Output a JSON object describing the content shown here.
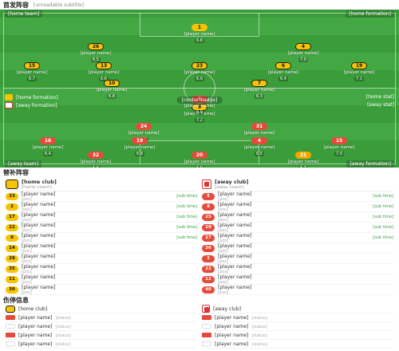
{
  "lineup": {
    "title": "首发阵容",
    "subtitle": "[unreadable subtitle]",
    "home_team_name": "[home team]",
    "home_formation_label": "[home formation]",
    "away_team_name": "[away team]",
    "away_formation_label": "[away formation]",
    "center_label": "[center badge]",
    "home_form": {
      "formation": "[home formation]",
      "stat": "[home stat]"
    },
    "away_form": {
      "formation": "[away formation]",
      "stat": "[away stat]"
    },
    "home_players": [
      {
        "num": "1",
        "name": "[player name]",
        "rating": "6.8"
      },
      {
        "num": "26",
        "name": "[player name]",
        "rating": "6.5"
      },
      {
        "num": "4",
        "name": "[player name]",
        "rating": "7.0"
      },
      {
        "num": "15",
        "name": "[player name]",
        "rating": "6.7"
      },
      {
        "num": "13",
        "name": "[player name]",
        "rating": "6.6"
      },
      {
        "num": "23",
        "name": "[player name]",
        "rating": "6.9"
      },
      {
        "num": "6",
        "name": "[player name]",
        "rating": "6.4"
      },
      {
        "num": "19",
        "name": "[player name]",
        "rating": "7.1"
      },
      {
        "num": "10",
        "name": "[player name]",
        "rating": "6.8"
      },
      {
        "num": "7",
        "name": "[player name]",
        "rating": "6.3"
      },
      {
        "num": "9",
        "name": "[player name]",
        "rating": "7.2"
      }
    ],
    "away_players": [
      {
        "num": "21",
        "name": "[player name]",
        "rating": "6.7"
      },
      {
        "num": "20",
        "name": "[player name]",
        "rating": "6.9"
      },
      {
        "num": "32",
        "name": "[player name]",
        "rating": "6.6"
      },
      {
        "num": "15",
        "name": "[player name]",
        "rating": "7.0"
      },
      {
        "num": "4",
        "name": "[player name]",
        "rating": "6.5"
      },
      {
        "num": "19",
        "name": "[player name]",
        "rating": "6.8"
      },
      {
        "num": "16",
        "name": "[player name]",
        "rating": "6.4"
      },
      {
        "num": "31",
        "name": "[player name]",
        "rating": "7.1"
      },
      {
        "num": "24",
        "name": "[player name]",
        "rating": "6.6"
      },
      {
        "num": "1",
        "name": "[player name]",
        "rating": "6.9"
      }
    ]
  },
  "subs": {
    "title": "替补阵容",
    "home": {
      "club": "[home club]",
      "coach": "[home coach]",
      "players": [
        {
          "num": "33",
          "name": "[player name]",
          "pos": "[pos]",
          "in": "[sub time]"
        },
        {
          "num": "2",
          "name": "[player name]",
          "pos": "[pos]",
          "in": "[sub time]"
        },
        {
          "num": "17",
          "name": "[player name]",
          "pos": "[pos]",
          "in": "[sub time]"
        },
        {
          "num": "22",
          "name": "[player name]",
          "pos": "[pos]",
          "in": "[sub time]"
        },
        {
          "num": "8",
          "name": "[player name]",
          "pos": "[pos]",
          "in": "[sub time]"
        },
        {
          "num": "14",
          "name": "[player name]",
          "pos": "[pos]",
          "in": ""
        },
        {
          "num": "28",
          "name": "[player name]",
          "pos": "[pos]",
          "in": ""
        },
        {
          "num": "35",
          "name": "[player name]",
          "pos": "[pos]",
          "in": ""
        },
        {
          "num": "11",
          "name": "[player name]",
          "pos": "[pos]",
          "in": ""
        },
        {
          "num": "30",
          "name": "[player name]",
          "pos": "[pos]",
          "in": ""
        }
      ]
    },
    "away": {
      "club": "[away club]",
      "coach": "[away coach]",
      "players": [
        {
          "num": "5",
          "name": "[player name]",
          "pos": "[pos]",
          "in": "[sub time]"
        },
        {
          "num": "8",
          "name": "[player name]",
          "pos": "[pos]",
          "in": "[sub time]"
        },
        {
          "num": "25",
          "name": "[player name]",
          "pos": "[pos]",
          "in": "[sub time]"
        },
        {
          "num": "29",
          "name": "[player name]",
          "pos": "[pos]",
          "in": "[sub time]"
        },
        {
          "num": "27",
          "name": "[player name]",
          "pos": "[pos]",
          "in": "[sub time]"
        },
        {
          "num": "36",
          "name": "[player name]",
          "pos": "[pos]",
          "in": ""
        },
        {
          "num": "3",
          "name": "[player name]",
          "pos": "[pos]",
          "in": ""
        },
        {
          "num": "22",
          "name": "[player name]",
          "pos": "[pos]",
          "in": ""
        },
        {
          "num": "12",
          "name": "[player name]",
          "pos": "[pos]",
          "in": ""
        },
        {
          "num": "40",
          "name": "[player name]",
          "pos": "[pos]",
          "in": ""
        }
      ]
    }
  },
  "injuries": {
    "title": "伤停信息",
    "home": {
      "club": "[home club]",
      "players": [
        {
          "name": "[player name]",
          "status": "[status]"
        },
        {
          "name": "[player name]",
          "status": "[status]"
        },
        {
          "name": "[player name]",
          "status": "[status]"
        },
        {
          "name": "[player name]",
          "status": "[status]"
        }
      ]
    },
    "away": {
      "club": "[away club]",
      "players": [
        {
          "name": "[player name]",
          "status": "[status]"
        },
        {
          "name": "[player name]",
          "status": "[status]"
        },
        {
          "name": "[player name]",
          "status": "[status]"
        },
        {
          "name": "[player name]",
          "status": "[status]"
        }
      ]
    }
  },
  "colors": {
    "pitch": "#3a9d3a",
    "home": "#f6c400",
    "away": "#e64a3b"
  }
}
